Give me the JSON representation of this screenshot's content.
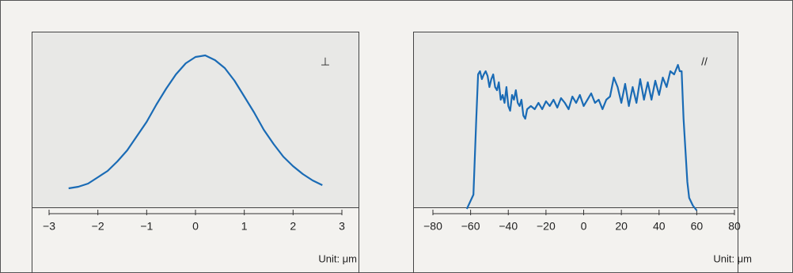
{
  "chart_data": [
    {
      "type": "line",
      "annotation": "⊥",
      "xlabel": "Unit: μm",
      "x": [
        -2.6,
        -2.4,
        -2.2,
        -2.0,
        -1.8,
        -1.6,
        -1.4,
        -1.2,
        -1.0,
        -0.8,
        -0.6,
        -0.4,
        -0.2,
        0,
        0.2,
        0.4,
        0.6,
        0.8,
        1.0,
        1.2,
        1.4,
        1.6,
        1.8,
        2.0,
        2.2,
        2.4,
        2.6
      ],
      "series": [
        {
          "color": "#1a6bb5",
          "values": [
            0.16,
            0.17,
            0.19,
            0.23,
            0.27,
            0.33,
            0.4,
            0.49,
            0.58,
            0.69,
            0.79,
            0.88,
            0.95,
            0.99,
            1.0,
            0.97,
            0.92,
            0.84,
            0.74,
            0.64,
            0.53,
            0.44,
            0.36,
            0.3,
            0.25,
            0.21,
            0.18
          ]
        }
      ],
      "xlim": [
        -3,
        3
      ],
      "ylim": [
        0,
        1
      ],
      "xticks": [
        {
          "value": -3,
          "label": "−3"
        },
        {
          "value": -2,
          "label": "−2"
        },
        {
          "value": -1,
          "label": "−1"
        },
        0,
        1,
        2,
        3
      ]
    },
    {
      "type": "line",
      "annotation": "//",
      "xlabel": "Unit: μm",
      "x": [
        -62,
        -58.5,
        -57,
        -56,
        -55,
        -54,
        -53,
        -52,
        -51,
        -50,
        -49,
        -48,
        -47,
        -46,
        -45,
        -44,
        -43,
        -42,
        -41,
        -40,
        -39,
        -38,
        -37,
        -36,
        -35,
        -34,
        -33,
        -32,
        -31,
        -30,
        -28,
        -26,
        -24,
        -22,
        -20,
        -18,
        -16,
        -14,
        -12,
        -10,
        -8,
        -6,
        -4,
        -2,
        0,
        2,
        4,
        6,
        8,
        10,
        12,
        14,
        16,
        18,
        20,
        22,
        24,
        26,
        28,
        30,
        32,
        34,
        36,
        38,
        40,
        42,
        44,
        46,
        48,
        50,
        51,
        52,
        53,
        54,
        55,
        56,
        58,
        60
      ],
      "series": [
        {
          "color": "#1a6bb5",
          "values": [
            0.03,
            0.12,
            0.6,
            0.88,
            0.9,
            0.85,
            0.88,
            0.9,
            0.87,
            0.8,
            0.85,
            0.88,
            0.8,
            0.78,
            0.83,
            0.72,
            0.75,
            0.7,
            0.8,
            0.68,
            0.65,
            0.75,
            0.72,
            0.78,
            0.7,
            0.68,
            0.72,
            0.62,
            0.6,
            0.66,
            0.68,
            0.66,
            0.7,
            0.66,
            0.71,
            0.68,
            0.72,
            0.67,
            0.73,
            0.7,
            0.66,
            0.74,
            0.7,
            0.75,
            0.68,
            0.72,
            0.76,
            0.7,
            0.72,
            0.66,
            0.72,
            0.74,
            0.86,
            0.8,
            0.7,
            0.82,
            0.68,
            0.8,
            0.7,
            0.85,
            0.72,
            0.83,
            0.72,
            0.84,
            0.75,
            0.86,
            0.8,
            0.9,
            0.88,
            0.94,
            0.9,
            0.9,
            0.6,
            0.4,
            0.2,
            0.1,
            0.05,
            0.02
          ]
        }
      ],
      "xlim": [
        -80,
        80
      ],
      "ylim": [
        0,
        1
      ],
      "xticks": [
        {
          "value": -80,
          "label": "−80"
        },
        {
          "value": -60,
          "label": "−60"
        },
        {
          "value": -40,
          "label": "−40"
        },
        {
          "value": -20,
          "label": "−20"
        },
        0,
        20,
        40,
        60,
        80
      ]
    }
  ]
}
